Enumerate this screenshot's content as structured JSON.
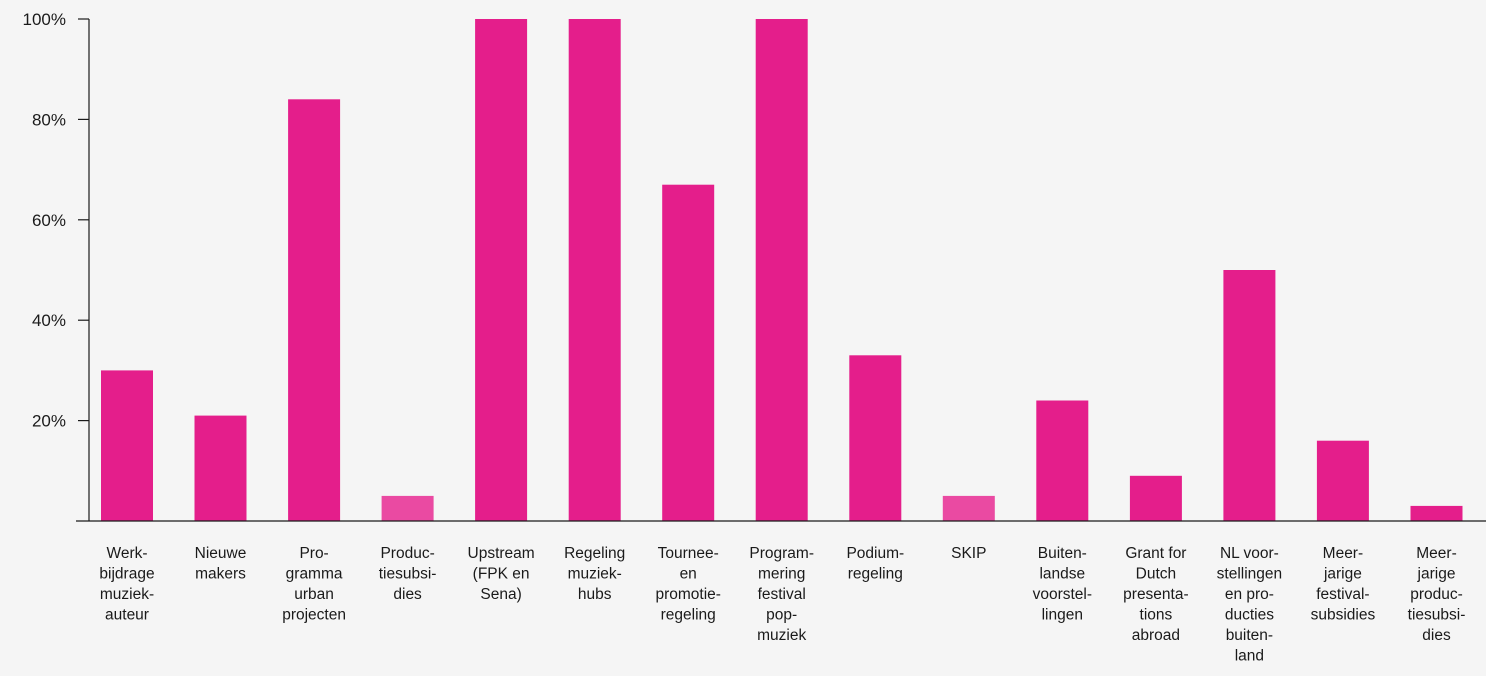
{
  "chart_data": {
    "type": "bar",
    "title": "",
    "xlabel": "",
    "ylabel": "",
    "ylim": [
      0,
      100
    ],
    "yticks": [
      {
        "value": 20,
        "label": "20%"
      },
      {
        "value": 40,
        "label": "40%"
      },
      {
        "value": 60,
        "label": "60%"
      },
      {
        "value": 80,
        "label": "80%"
      },
      {
        "value": 100,
        "label": "100%"
      }
    ],
    "grid": false,
    "categories": [
      [
        "Werk-",
        "bijdrage",
        "muziek-",
        "auteur"
      ],
      [
        "Nieuwe",
        "makers"
      ],
      [
        "Pro-",
        "gramma",
        "urban",
        "projecten"
      ],
      [
        "Produc-",
        "tiesubsi-",
        "dies"
      ],
      [
        "Upstream",
        "(FPK en",
        "Sena)"
      ],
      [
        "Regeling",
        "muziek-",
        "hubs"
      ],
      [
        "Tournee-",
        "en",
        "promotie-",
        "regeling"
      ],
      [
        "Program-",
        "mering",
        "festival",
        "pop-",
        "muziek"
      ],
      [
        "Podium-",
        "regeling"
      ],
      [
        "SKIP"
      ],
      [
        "Buiten-",
        "landse",
        "voorstel-",
        "lingen"
      ],
      [
        "Grant for",
        "Dutch",
        "presenta-",
        "tions",
        "abroad"
      ],
      [
        "NL voor-",
        "stellingen",
        "en pro-",
        "ducties",
        "buiten-",
        "land"
      ],
      [
        "Meer-",
        "jarige",
        "festival-",
        "subsidies"
      ],
      [
        "Meer-",
        "jarige",
        "produc-",
        "tiesubsi-",
        "dies"
      ]
    ],
    "values": [
      30,
      21,
      84,
      5,
      100,
      100,
      67,
      100,
      33,
      5,
      24,
      9,
      50,
      16,
      3
    ],
    "bar_colors": [
      "#e41e8b",
      "#e41e8b",
      "#e41e8b",
      "#ea4aa2",
      "#e41e8b",
      "#e41e8b",
      "#e41e8b",
      "#e41e8b",
      "#e41e8b",
      "#ea4aa2",
      "#e41e8b",
      "#e41e8b",
      "#e41e8b",
      "#e41e8b",
      "#e41e8b"
    ],
    "axis_color": "#1a1a1a"
  }
}
